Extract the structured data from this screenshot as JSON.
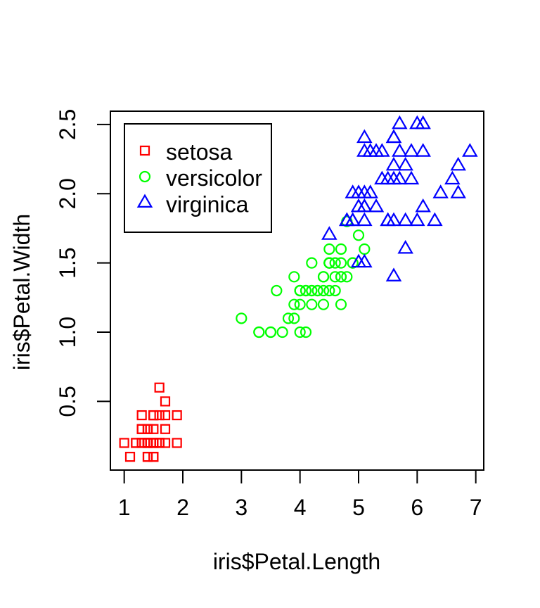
{
  "figure": {
    "background": "#ffffff",
    "foreground": "#000000"
  },
  "chart_data": {
    "type": "scatter",
    "title": "",
    "xlabel": "iris$Petal.Length",
    "ylabel": "iris$Petal.Width",
    "xlim": [
      0.764,
      7.136
    ],
    "ylim": [
      0.004,
      2.596
    ],
    "x_ticks": [
      1,
      2,
      3,
      4,
      5,
      6,
      7
    ],
    "x_tick_labels": [
      "1",
      "2",
      "3",
      "4",
      "5",
      "6",
      "7"
    ],
    "y_ticks": [
      0.5,
      1.0,
      1.5,
      2.0,
      2.5
    ],
    "y_tick_labels": [
      "0.5",
      "1.0",
      "1.5",
      "2.0",
      "2.5"
    ],
    "grid": false,
    "legend": {
      "position": "top-left",
      "entries": [
        {
          "label": "setosa",
          "marker": "square",
          "color": "#FF0000"
        },
        {
          "label": "versicolor",
          "marker": "circle",
          "color": "#00FF00"
        },
        {
          "label": "virginica",
          "marker": "triangle-up",
          "color": "#0000FF"
        }
      ]
    },
    "series": [
      {
        "name": "setosa",
        "marker": "square",
        "color": "#FF0000",
        "points": [
          [
            1.4,
            0.2
          ],
          [
            1.4,
            0.2
          ],
          [
            1.3,
            0.2
          ],
          [
            1.5,
            0.2
          ],
          [
            1.4,
            0.2
          ],
          [
            1.7,
            0.4
          ],
          [
            1.4,
            0.3
          ],
          [
            1.5,
            0.2
          ],
          [
            1.4,
            0.2
          ],
          [
            1.5,
            0.1
          ],
          [
            1.5,
            0.2
          ],
          [
            1.6,
            0.2
          ],
          [
            1.4,
            0.1
          ],
          [
            1.1,
            0.1
          ],
          [
            1.2,
            0.2
          ],
          [
            1.5,
            0.4
          ],
          [
            1.3,
            0.4
          ],
          [
            1.4,
            0.3
          ],
          [
            1.7,
            0.3
          ],
          [
            1.5,
            0.3
          ],
          [
            1.7,
            0.2
          ],
          [
            1.5,
            0.4
          ],
          [
            1.0,
            0.2
          ],
          [
            1.7,
            0.5
          ],
          [
            1.9,
            0.2
          ],
          [
            1.6,
            0.2
          ],
          [
            1.6,
            0.4
          ],
          [
            1.5,
            0.2
          ],
          [
            1.4,
            0.2
          ],
          [
            1.6,
            0.2
          ],
          [
            1.6,
            0.2
          ],
          [
            1.5,
            0.4
          ],
          [
            1.5,
            0.1
          ],
          [
            1.4,
            0.2
          ],
          [
            1.5,
            0.2
          ],
          [
            1.2,
            0.2
          ],
          [
            1.3,
            0.2
          ],
          [
            1.4,
            0.1
          ],
          [
            1.3,
            0.2
          ],
          [
            1.5,
            0.2
          ],
          [
            1.3,
            0.3
          ],
          [
            1.3,
            0.3
          ],
          [
            1.3,
            0.2
          ],
          [
            1.6,
            0.6
          ],
          [
            1.9,
            0.4
          ],
          [
            1.4,
            0.3
          ],
          [
            1.6,
            0.2
          ],
          [
            1.4,
            0.2
          ],
          [
            1.5,
            0.2
          ],
          [
            1.4,
            0.2
          ]
        ]
      },
      {
        "name": "versicolor",
        "marker": "circle",
        "color": "#00FF00",
        "points": [
          [
            4.7,
            1.4
          ],
          [
            4.5,
            1.5
          ],
          [
            4.9,
            1.5
          ],
          [
            4.0,
            1.3
          ],
          [
            4.6,
            1.5
          ],
          [
            4.5,
            1.3
          ],
          [
            4.7,
            1.6
          ],
          [
            3.3,
            1.0
          ],
          [
            4.6,
            1.3
          ],
          [
            3.9,
            1.4
          ],
          [
            3.5,
            1.0
          ],
          [
            4.2,
            1.5
          ],
          [
            4.0,
            1.0
          ],
          [
            4.7,
            1.4
          ],
          [
            3.6,
            1.3
          ],
          [
            4.4,
            1.4
          ],
          [
            4.5,
            1.5
          ],
          [
            4.1,
            1.0
          ],
          [
            4.5,
            1.5
          ],
          [
            3.9,
            1.1
          ],
          [
            4.8,
            1.8
          ],
          [
            4.0,
            1.3
          ],
          [
            4.9,
            1.5
          ],
          [
            4.7,
            1.2
          ],
          [
            4.3,
            1.3
          ],
          [
            4.4,
            1.4
          ],
          [
            4.8,
            1.4
          ],
          [
            5.0,
            1.7
          ],
          [
            4.5,
            1.5
          ],
          [
            3.5,
            1.0
          ],
          [
            3.8,
            1.1
          ],
          [
            3.7,
            1.0
          ],
          [
            3.9,
            1.2
          ],
          [
            5.1,
            1.6
          ],
          [
            4.5,
            1.5
          ],
          [
            4.5,
            1.6
          ],
          [
            4.7,
            1.5
          ],
          [
            4.4,
            1.3
          ],
          [
            4.1,
            1.3
          ],
          [
            4.0,
            1.3
          ],
          [
            4.4,
            1.2
          ],
          [
            4.6,
            1.4
          ],
          [
            4.0,
            1.2
          ],
          [
            3.3,
            1.0
          ],
          [
            4.2,
            1.3
          ],
          [
            4.2,
            1.2
          ],
          [
            4.2,
            1.3
          ],
          [
            4.3,
            1.3
          ],
          [
            3.0,
            1.1
          ],
          [
            4.1,
            1.3
          ]
        ]
      },
      {
        "name": "virginica",
        "marker": "triangle-up",
        "color": "#0000FF",
        "points": [
          [
            6.0,
            2.5
          ],
          [
            5.1,
            1.9
          ],
          [
            5.9,
            2.1
          ],
          [
            5.6,
            1.8
          ],
          [
            5.8,
            2.2
          ],
          [
            6.6,
            2.1
          ],
          [
            4.5,
            1.7
          ],
          [
            6.3,
            1.8
          ],
          [
            5.8,
            1.8
          ],
          [
            6.1,
            2.5
          ],
          [
            5.1,
            2.0
          ],
          [
            5.3,
            1.9
          ],
          [
            5.5,
            2.1
          ],
          [
            5.0,
            2.0
          ],
          [
            5.1,
            2.4
          ],
          [
            5.3,
            2.3
          ],
          [
            5.5,
            1.8
          ],
          [
            6.7,
            2.2
          ],
          [
            6.9,
            2.3
          ],
          [
            5.0,
            1.5
          ],
          [
            5.7,
            2.3
          ],
          [
            4.9,
            2.0
          ],
          [
            6.7,
            2.0
          ],
          [
            4.9,
            1.8
          ],
          [
            5.7,
            2.1
          ],
          [
            6.0,
            1.8
          ],
          [
            4.8,
            1.8
          ],
          [
            4.9,
            1.8
          ],
          [
            5.6,
            2.1
          ],
          [
            5.8,
            1.6
          ],
          [
            6.1,
            1.9
          ],
          [
            6.4,
            2.0
          ],
          [
            5.6,
            2.2
          ],
          [
            5.1,
            1.5
          ],
          [
            5.6,
            1.4
          ],
          [
            6.1,
            2.3
          ],
          [
            5.6,
            2.4
          ],
          [
            5.5,
            1.8
          ],
          [
            4.8,
            1.8
          ],
          [
            5.4,
            2.1
          ],
          [
            5.6,
            2.4
          ],
          [
            5.1,
            2.3
          ],
          [
            5.1,
            1.9
          ],
          [
            5.9,
            2.3
          ],
          [
            5.7,
            2.5
          ],
          [
            5.2,
            2.3
          ],
          [
            5.0,
            1.9
          ],
          [
            5.2,
            2.0
          ],
          [
            5.4,
            2.3
          ],
          [
            5.1,
            1.8
          ]
        ]
      }
    ]
  }
}
